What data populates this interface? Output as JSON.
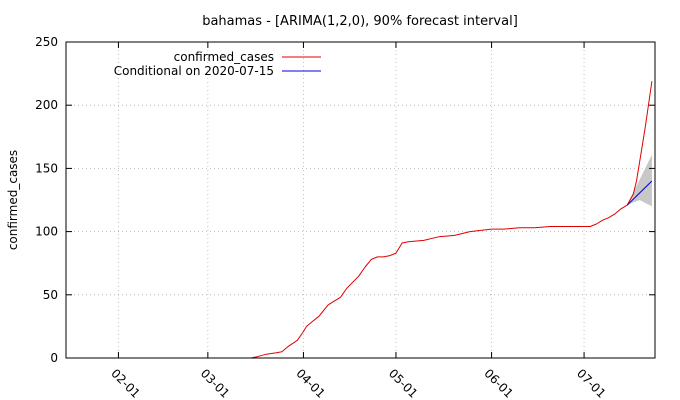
{
  "chart_data": {
    "type": "line",
    "title": "bahamas -  [ARIMA(1,2,0), 90% forecast interval]",
    "xlabel": "",
    "ylabel": "confirmed_cases",
    "x_range": [
      "2020-01-15",
      "2020-07-24"
    ],
    "ylim": [
      0,
      250
    ],
    "y_ticks": [
      0,
      50,
      100,
      150,
      200,
      250
    ],
    "x_ticks": [
      {
        "date": "2020-02-01",
        "label": "02-01"
      },
      {
        "date": "2020-03-01",
        "label": "03-01"
      },
      {
        "date": "2020-04-01",
        "label": "04-01"
      },
      {
        "date": "2020-05-01",
        "label": "05-01"
      },
      {
        "date": "2020-06-01",
        "label": "06-01"
      },
      {
        "date": "2020-07-01",
        "label": "07-01"
      }
    ],
    "grid": true,
    "legend_position": "top-left",
    "series": [
      {
        "name": "confirmed_cases",
        "color": "#e00000",
        "x": [
          "2020-03-15",
          "2020-03-17",
          "2020-03-20",
          "2020-03-23",
          "2020-03-25",
          "2020-03-27",
          "2020-03-30",
          "2020-04-01",
          "2020-04-02",
          "2020-04-04",
          "2020-04-06",
          "2020-04-07",
          "2020-04-09",
          "2020-04-11",
          "2020-04-13",
          "2020-04-15",
          "2020-04-17",
          "2020-04-19",
          "2020-04-21",
          "2020-04-23",
          "2020-04-25",
          "2020-04-27",
          "2020-04-29",
          "2020-05-01",
          "2020-05-03",
          "2020-05-05",
          "2020-05-10",
          "2020-05-15",
          "2020-05-20",
          "2020-05-25",
          "2020-06-01",
          "2020-06-05",
          "2020-06-10",
          "2020-06-15",
          "2020-06-20",
          "2020-06-25",
          "2020-06-30",
          "2020-07-03",
          "2020-07-05",
          "2020-07-07",
          "2020-07-09",
          "2020-07-11",
          "2020-07-13",
          "2020-07-15",
          "2020-07-17",
          "2020-07-18",
          "2020-07-19",
          "2020-07-20",
          "2020-07-21",
          "2020-07-22",
          "2020-07-23"
        ],
        "y": [
          0,
          1,
          3,
          4,
          5,
          9,
          14,
          21,
          25,
          29,
          33,
          36,
          42,
          45,
          48,
          55,
          60,
          65,
          72,
          78,
          80,
          80,
          81,
          83,
          91,
          92,
          93,
          96,
          97,
          100,
          102,
          102,
          103,
          103,
          104,
          104,
          104,
          104,
          106,
          109,
          111,
          114,
          118,
          121,
          130,
          140,
          155,
          170,
          185,
          202,
          219
        ]
      },
      {
        "name": "Conditional on 2020-07-15",
        "color": "#0000e0",
        "x": [
          "2020-07-15",
          "2020-07-23"
        ],
        "y": [
          121,
          140
        ]
      }
    ],
    "forecast_interval": {
      "level": "90%",
      "color": "#c8c8c8",
      "x": [
        "2020-07-15",
        "2020-07-19",
        "2020-07-23"
      ],
      "lower": [
        121,
        125,
        120
      ],
      "upper": [
        121,
        141,
        161
      ]
    }
  }
}
